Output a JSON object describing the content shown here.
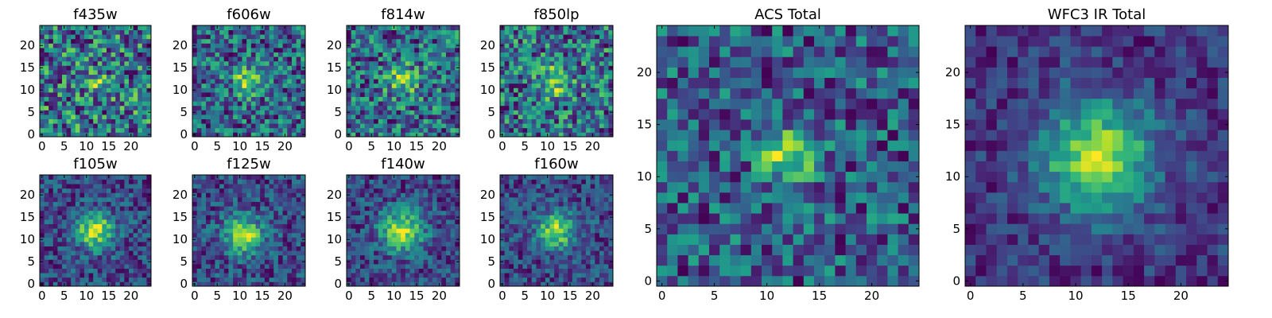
{
  "figure_title": "",
  "chart_data": [
    {
      "type": "heatmap",
      "title": "f435w",
      "grid_size": 25,
      "xlim": [
        0,
        25
      ],
      "ylim": [
        0,
        25
      ],
      "xticks": [
        0,
        5,
        10,
        15,
        20
      ],
      "yticks": [
        0,
        5,
        10,
        15,
        20
      ],
      "colormap": "viridis",
      "seed": 11,
      "peak": [
        12,
        12
      ],
      "sigma": 2.0,
      "amp": 0.3,
      "noise": 1.0,
      "floor": 0.3
    },
    {
      "type": "heatmap",
      "title": "f606w",
      "grid_size": 25,
      "xlim": [
        0,
        25
      ],
      "ylim": [
        0,
        25
      ],
      "xticks": [
        0,
        5,
        10,
        15,
        20
      ],
      "yticks": [
        0,
        5,
        10,
        15,
        20
      ],
      "colormap": "viridis",
      "seed": 23,
      "peak": [
        12,
        12
      ],
      "sigma": 2.2,
      "amp": 0.55,
      "noise": 0.75,
      "floor": 0.25
    },
    {
      "type": "heatmap",
      "title": "f814w",
      "grid_size": 25,
      "xlim": [
        0,
        25
      ],
      "ylim": [
        0,
        25
      ],
      "xticks": [
        0,
        5,
        10,
        15,
        20
      ],
      "yticks": [
        0,
        5,
        10,
        15,
        20
      ],
      "colormap": "viridis",
      "seed": 37,
      "peak": [
        12,
        12
      ],
      "sigma": 2.5,
      "amp": 0.45,
      "noise": 0.85,
      "floor": 0.3
    },
    {
      "type": "heatmap",
      "title": "f850lp",
      "grid_size": 25,
      "xlim": [
        0,
        25
      ],
      "ylim": [
        0,
        25
      ],
      "xticks": [
        0,
        5,
        10,
        15,
        20
      ],
      "yticks": [
        0,
        5,
        10,
        15,
        20
      ],
      "colormap": "viridis",
      "seed": 41,
      "peak": [
        12,
        12
      ],
      "sigma": 2.5,
      "amp": 0.45,
      "noise": 0.85,
      "floor": 0.3
    },
    {
      "type": "heatmap",
      "title": "f105w",
      "grid_size": 25,
      "xlim": [
        0,
        25
      ],
      "ylim": [
        0,
        25
      ],
      "xticks": [
        0,
        5,
        10,
        15,
        20
      ],
      "yticks": [
        0,
        5,
        10,
        15,
        20
      ],
      "colormap": "viridis",
      "seed": 53,
      "peak": [
        12,
        12
      ],
      "sigma": 3.0,
      "amp": 0.75,
      "noise": 0.55,
      "floor": 0.2
    },
    {
      "type": "heatmap",
      "title": "f125w",
      "grid_size": 25,
      "xlim": [
        0,
        25
      ],
      "ylim": [
        0,
        25
      ],
      "xticks": [
        0,
        5,
        10,
        15,
        20
      ],
      "yticks": [
        0,
        5,
        10,
        15,
        20
      ],
      "colormap": "viridis",
      "seed": 67,
      "peak": [
        11,
        11
      ],
      "sigma": 3.0,
      "amp": 0.75,
      "noise": 0.55,
      "floor": 0.2
    },
    {
      "type": "heatmap",
      "title": "f140w",
      "grid_size": 25,
      "xlim": [
        0,
        25
      ],
      "ylim": [
        0,
        25
      ],
      "xticks": [
        0,
        5,
        10,
        15,
        20
      ],
      "yticks": [
        0,
        5,
        10,
        15,
        20
      ],
      "colormap": "viridis",
      "seed": 71,
      "peak": [
        12,
        12
      ],
      "sigma": 3.3,
      "amp": 0.75,
      "noise": 0.55,
      "floor": 0.2
    },
    {
      "type": "heatmap",
      "title": "f160w",
      "grid_size": 25,
      "xlim": [
        0,
        25
      ],
      "ylim": [
        0,
        25
      ],
      "xticks": [
        0,
        5,
        10,
        15,
        20
      ],
      "yticks": [
        0,
        5,
        10,
        15,
        20
      ],
      "colormap": "viridis",
      "seed": 83,
      "peak": [
        12,
        12
      ],
      "sigma": 3.0,
      "amp": 0.75,
      "noise": 0.55,
      "floor": 0.2
    },
    {
      "type": "heatmap",
      "title": "ACS Total",
      "grid_size": 25,
      "xlim": [
        0,
        25
      ],
      "ylim": [
        0,
        25
      ],
      "xticks": [
        0,
        5,
        10,
        15,
        20
      ],
      "yticks": [
        0,
        5,
        10,
        15,
        20
      ],
      "colormap": "viridis",
      "seed": 97,
      "peak": [
        12,
        12
      ],
      "sigma": 1.8,
      "amp": 0.65,
      "noise": 0.7,
      "floor": 0.25
    },
    {
      "type": "heatmap",
      "title": "WFC3 IR Total",
      "grid_size": 25,
      "xlim": [
        0,
        25
      ],
      "ylim": [
        0,
        25
      ],
      "xticks": [
        0,
        5,
        10,
        15,
        20
      ],
      "yticks": [
        0,
        5,
        10,
        15,
        20
      ],
      "colormap": "viridis",
      "seed": 101,
      "peak": [
        12,
        12
      ],
      "sigma": 3.8,
      "amp": 0.85,
      "noise": 0.4,
      "floor": 0.15
    }
  ]
}
